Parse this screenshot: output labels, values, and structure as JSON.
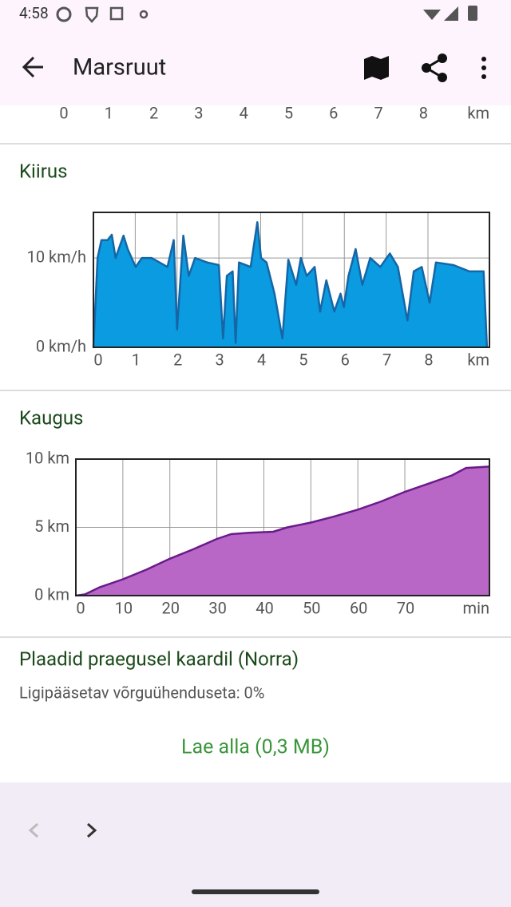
{
  "status_bar": {
    "time": "4:58"
  },
  "app_bar": {
    "title": "Marsruut"
  },
  "top_axis": {
    "xticks": [
      0,
      1,
      2,
      3,
      4,
      5,
      6,
      7,
      8
    ],
    "x_unit": "km"
  },
  "chart_data": [
    {
      "type": "area",
      "title": "Kiirus",
      "color": "#0a9be0",
      "line_color": "#1566a6",
      "x": [
        0,
        0.1,
        0.19,
        0.34,
        0.44,
        0.53,
        0.72,
        0.82,
        1.01,
        1.16,
        1.39,
        1.58,
        1.77,
        1.92,
        2.0,
        2.15,
        2.28,
        2.43,
        2.72,
        3.0,
        3.1,
        3.19,
        3.33,
        3.4,
        3.48,
        3.76,
        3.92,
        4.01,
        4.14,
        4.33,
        4.52,
        4.66,
        4.85,
        4.96,
        5.1,
        5.29,
        5.42,
        5.57,
        5.76,
        5.91,
        5.99,
        6.1,
        6.27,
        6.43,
        6.62,
        6.86,
        7.09,
        7.28,
        7.51,
        7.66,
        7.85,
        8.04,
        8.19,
        8.61,
        8.99,
        9.33,
        9.41
      ],
      "values": [
        0,
        10,
        12,
        12,
        12.6,
        10,
        12.5,
        11,
        9,
        10,
        10,
        9.5,
        9,
        12,
        2,
        12.5,
        8,
        10,
        9.5,
        9.2,
        1,
        8,
        8.5,
        0.5,
        9.5,
        9,
        14,
        10,
        9.5,
        6,
        1,
        9.8,
        7,
        10,
        8,
        9,
        4,
        7.5,
        4,
        6,
        4.5,
        8,
        11,
        7,
        10,
        9,
        10.5,
        9,
        3,
        8.5,
        9,
        5,
        9.5,
        9.2,
        8.5,
        8.5,
        0
      ],
      "xlim": [
        0,
        9.47
      ],
      "ylim": [
        0,
        15.1
      ],
      "xticks": [
        0,
        1,
        2,
        3,
        4,
        5,
        6,
        7,
        8
      ],
      "x_unit": "km",
      "yticks": [
        {
          "value": 0,
          "label": "0 km/h"
        },
        {
          "value": 10,
          "label": "10 km/h"
        }
      ],
      "grid": true
    },
    {
      "type": "area",
      "title": "Kaugus",
      "color": "#b967c7",
      "line_color": "#6a1b8a",
      "x": [
        0,
        2,
        5,
        10,
        15,
        20,
        25,
        30,
        33,
        37,
        42,
        45,
        50,
        55,
        60,
        65,
        70,
        75,
        80,
        83,
        88
      ],
      "values": [
        0,
        0.1,
        0.6,
        1.2,
        1.9,
        2.7,
        3.4,
        4.15,
        4.5,
        4.6,
        4.68,
        5.0,
        5.35,
        5.8,
        6.3,
        6.9,
        7.6,
        8.2,
        8.8,
        9.35,
        9.45
      ],
      "xlim": [
        0,
        88
      ],
      "ylim": [
        0,
        10
      ],
      "xticks": [
        0,
        10,
        20,
        30,
        40,
        50,
        60,
        70
      ],
      "x_unit": "min",
      "yticks": [
        {
          "value": 0,
          "label": "0 km"
        },
        {
          "value": 5,
          "label": "5 km"
        },
        {
          "value": 10,
          "label": "10 km"
        }
      ],
      "grid": true
    }
  ],
  "tiles": {
    "title": "Plaadid praegusel kaardil (Norra)",
    "offline": "Ligipääsetav võrguühenduseta: 0%",
    "button": "Lae alla (0,3 MB)"
  }
}
